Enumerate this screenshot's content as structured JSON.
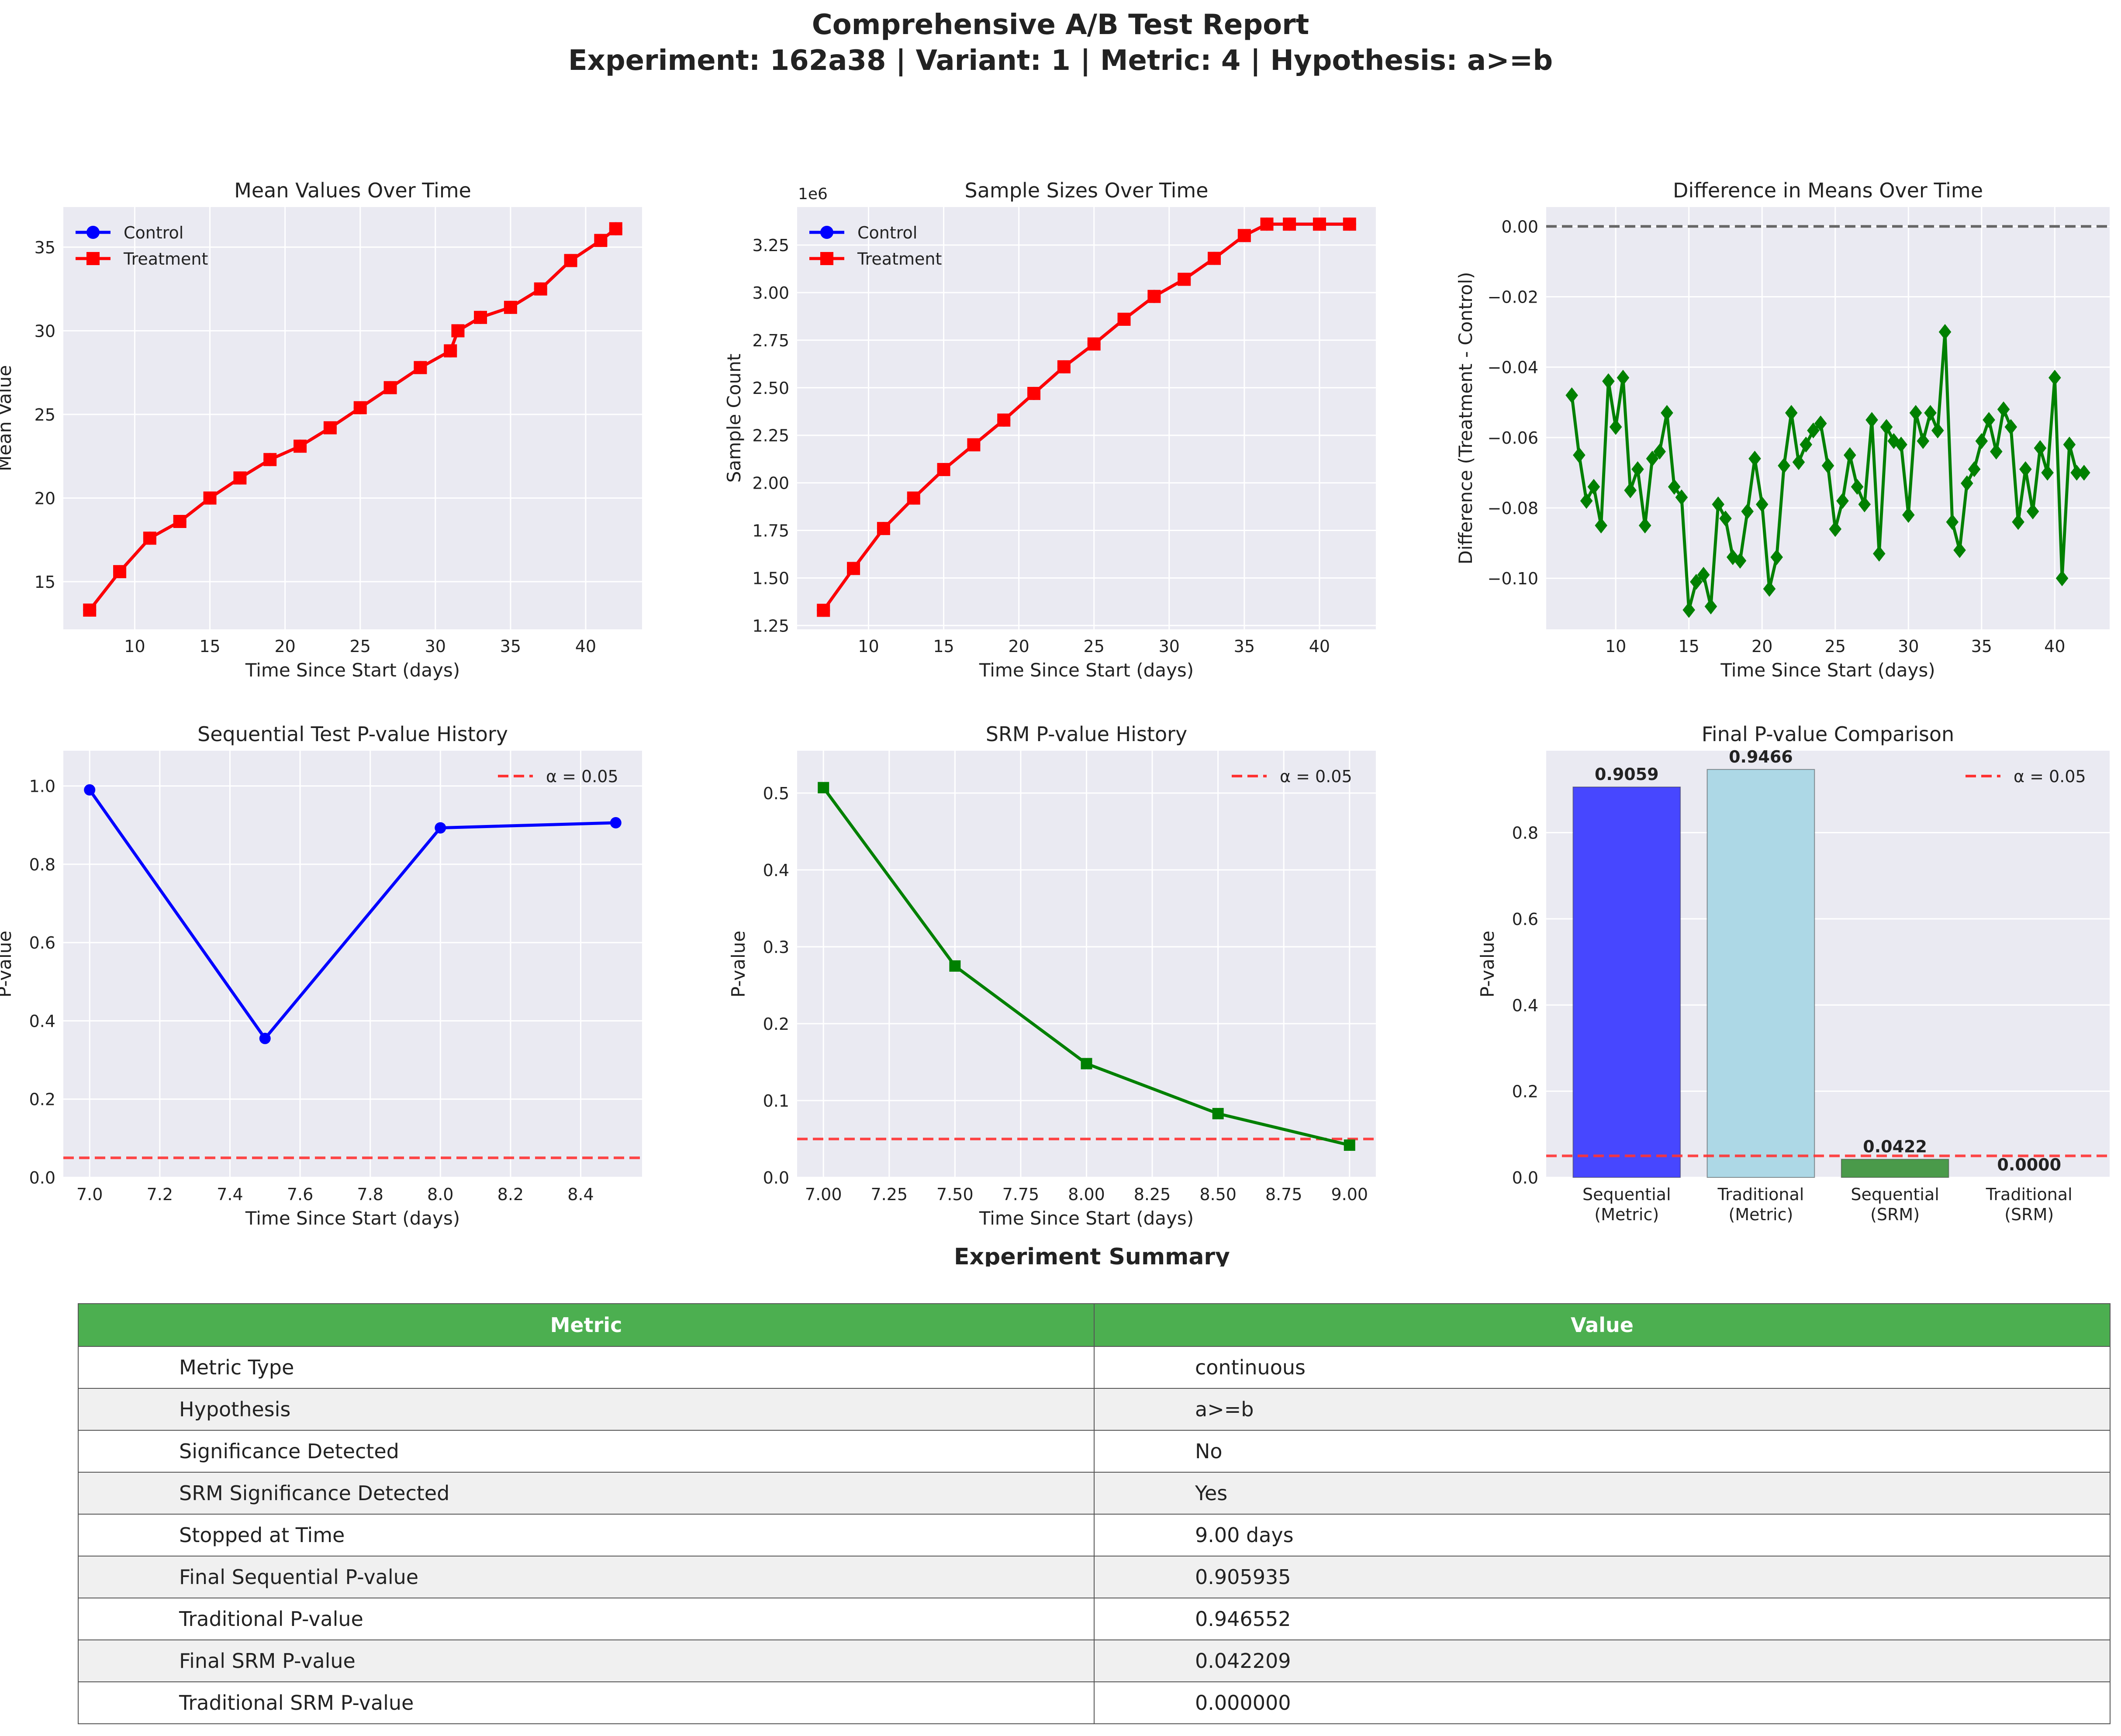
{
  "figure": {
    "title_line1": "Comprehensive A/B Test Report",
    "title_line2": "Experiment: 162a38 | Variant: 1 | Metric: 4 | Hypothesis: a>=b"
  },
  "colors": {
    "axes_bg": "#eaeaf2",
    "grid": "#ffffff",
    "control": "#0000ff",
    "treatment": "#ff0000",
    "diff": "#008000",
    "alpha_line": "#ff3333",
    "zero_line": "#666666"
  },
  "chart_data": [
    {
      "type": "line",
      "title": "Mean Values Over Time",
      "xlabel": "Time Since Start (days)",
      "ylabel": "Mean Value",
      "xlim": [
        5.25,
        43.75
      ],
      "ylim": [
        12.15,
        37.4
      ],
      "xticks": [
        10,
        15,
        20,
        25,
        30,
        35,
        40
      ],
      "yticks": [
        15,
        20,
        25,
        30,
        35
      ],
      "legend": "top-left",
      "series": [
        {
          "name": "Control",
          "color": "#0000ff",
          "marker": "circle",
          "x": [
            7,
            9,
            11,
            13,
            15,
            17,
            19,
            21,
            23,
            25,
            27,
            29,
            31,
            31.5,
            33,
            35,
            37,
            39,
            41,
            42
          ],
          "y": [
            13.3,
            15.6,
            17.6,
            18.6,
            20.0,
            21.2,
            22.3,
            23.1,
            24.2,
            25.4,
            26.6,
            27.8,
            28.8,
            30.0,
            30.8,
            31.4,
            32.5,
            34.2,
            35.4,
            36.1
          ]
        },
        {
          "name": "Treatment",
          "color": "#ff0000",
          "marker": "square",
          "x": [
            7,
            9,
            11,
            13,
            15,
            17,
            19,
            21,
            23,
            25,
            27,
            29,
            31,
            31.5,
            33,
            35,
            37,
            39,
            41,
            42
          ],
          "y": [
            13.3,
            15.6,
            17.6,
            18.6,
            20.0,
            21.2,
            22.3,
            23.1,
            24.2,
            25.4,
            26.6,
            27.8,
            28.8,
            30.0,
            30.8,
            31.4,
            32.5,
            34.2,
            35.4,
            36.1
          ]
        }
      ]
    },
    {
      "type": "line",
      "title": "Sample Sizes Over Time",
      "xlabel": "Time Since Start (days)",
      "ylabel": "Sample Count",
      "offset_label": "1e6",
      "xlim": [
        5.25,
        43.75
      ],
      "ylim": [
        1.23,
        3.45
      ],
      "xticks": [
        10,
        15,
        20,
        25,
        30,
        35,
        40
      ],
      "yticks": [
        1.25,
        1.5,
        1.75,
        2.0,
        2.25,
        2.5,
        2.75,
        3.0,
        3.25
      ],
      "ytick_labels": [
        "1.25",
        "1.50",
        "1.75",
        "2.00",
        "2.25",
        "2.50",
        "2.75",
        "3.00",
        "3.25"
      ],
      "legend": "top-left",
      "series": [
        {
          "name": "Control",
          "color": "#0000ff",
          "marker": "circle",
          "x": [
            7,
            9,
            11,
            13,
            15,
            17,
            19,
            21,
            23,
            25,
            27,
            29,
            31,
            33,
            35,
            36.5,
            38,
            40,
            42
          ],
          "y": [
            1.33,
            1.55,
            1.76,
            1.92,
            2.07,
            2.2,
            2.33,
            2.47,
            2.61,
            2.73,
            2.86,
            2.98,
            3.07,
            3.18,
            3.3,
            3.36,
            3.36,
            3.36,
            3.36
          ]
        },
        {
          "name": "Treatment",
          "color": "#ff0000",
          "marker": "square",
          "x": [
            7,
            9,
            11,
            13,
            15,
            17,
            19,
            21,
            23,
            25,
            27,
            29,
            31,
            33,
            35,
            36.5,
            38,
            40,
            42
          ],
          "y": [
            1.33,
            1.55,
            1.76,
            1.92,
            2.07,
            2.2,
            2.33,
            2.47,
            2.61,
            2.73,
            2.86,
            2.98,
            3.07,
            3.18,
            3.3,
            3.36,
            3.36,
            3.36,
            3.36
          ]
        }
      ]
    },
    {
      "type": "line",
      "title": "Difference in Means Over Time",
      "xlabel": "Time Since Start (days)",
      "ylabel": "Difference (Treatment - Control)",
      "xlim": [
        5.25,
        43.75
      ],
      "ylim": [
        -0.1145,
        0.0055
      ],
      "xticks": [
        10,
        15,
        20,
        25,
        30,
        35,
        40
      ],
      "yticks": [
        0,
        -0.02,
        -0.04,
        -0.06,
        -0.08,
        -0.1
      ],
      "ytick_labels": [
        "0.00",
        "−0.02",
        "−0.04",
        "−0.06",
        "−0.08",
        "−0.10"
      ],
      "reference_line": 0,
      "series": [
        {
          "name": "",
          "color": "#008000",
          "marker": "diamond",
          "x": [
            7,
            7.5,
            8,
            8.5,
            9,
            9.5,
            10,
            10.5,
            11,
            11.5,
            12,
            12.5,
            13,
            13.5,
            14,
            14.5,
            15,
            15.5,
            16,
            16.5,
            17,
            17.5,
            18,
            18.5,
            19,
            19.5,
            20,
            20.5,
            21,
            21.5,
            22,
            22.5,
            23,
            23.5,
            24,
            24.5,
            25,
            25.5,
            26,
            26.5,
            27,
            27.5,
            28,
            28.5,
            29,
            29.5,
            30,
            30.5,
            31,
            31.5,
            32,
            32.5,
            33,
            33.5,
            34,
            34.5,
            35,
            35.5,
            36,
            36.5,
            37,
            37.5,
            38,
            38.5,
            39,
            39.5,
            40,
            40.5,
            41,
            41.5,
            42
          ],
          "y": [
            -0.048,
            -0.065,
            -0.078,
            -0.074,
            -0.085,
            -0.044,
            -0.057,
            -0.043,
            -0.075,
            -0.069,
            -0.085,
            -0.066,
            -0.064,
            -0.053,
            -0.074,
            -0.077,
            -0.109,
            -0.101,
            -0.099,
            -0.108,
            -0.079,
            -0.083,
            -0.094,
            -0.095,
            -0.081,
            -0.066,
            -0.079,
            -0.103,
            -0.094,
            -0.068,
            -0.053,
            -0.067,
            -0.062,
            -0.058,
            -0.056,
            -0.068,
            -0.086,
            -0.078,
            -0.065,
            -0.074,
            -0.079,
            -0.055,
            -0.093,
            -0.057,
            -0.061,
            -0.062,
            -0.082,
            -0.053,
            -0.061,
            -0.053,
            -0.058,
            -0.03,
            -0.084,
            -0.092,
            -0.073,
            -0.069,
            -0.061,
            -0.055,
            -0.064,
            -0.052,
            -0.057,
            -0.084,
            -0.069,
            -0.081,
            -0.063,
            -0.07,
            -0.043,
            -0.1,
            -0.062,
            -0.07,
            -0.07
          ]
        }
      ]
    },
    {
      "type": "line",
      "title": "Sequential Test P-value History",
      "xlabel": "Time Since Start (days)",
      "ylabel": "P-value",
      "xlim": [
        6.925,
        8.575
      ],
      "ylim": [
        0,
        1.09
      ],
      "xticks": [
        7.0,
        7.2,
        7.4,
        7.6,
        7.8,
        8.0,
        8.2,
        8.4
      ],
      "xtick_labels": [
        "7.0",
        "7.2",
        "7.4",
        "7.6",
        "7.8",
        "8.0",
        "8.2",
        "8.4"
      ],
      "yticks": [
        0,
        0.2,
        0.4,
        0.6,
        0.8,
        1.0
      ],
      "ytick_labels": [
        "0.0",
        "0.2",
        "0.4",
        "0.6",
        "0.8",
        "1.0"
      ],
      "alpha_line": 0.05,
      "legend": "top-right",
      "legend_label": "α = 0.05",
      "series": [
        {
          "name": "",
          "color": "#0000ff",
          "marker": "circle",
          "x": [
            7.0,
            7.5,
            8.0,
            8.5
          ],
          "y": [
            0.99,
            0.355,
            0.893,
            0.906
          ]
        }
      ]
    },
    {
      "type": "line",
      "title": "SRM P-value History",
      "xlabel": "Time Since Start (days)",
      "ylabel": "P-value",
      "xlim": [
        6.9,
        9.1
      ],
      "ylim": [
        0,
        0.555
      ],
      "xticks": [
        7.0,
        7.25,
        7.5,
        7.75,
        8.0,
        8.25,
        8.5,
        8.75,
        9.0
      ],
      "xtick_labels": [
        "7.00",
        "7.25",
        "7.50",
        "7.75",
        "8.00",
        "8.25",
        "8.50",
        "8.75",
        "9.00"
      ],
      "yticks": [
        0,
        0.1,
        0.2,
        0.3,
        0.4,
        0.5
      ],
      "ytick_labels": [
        "0.0",
        "0.1",
        "0.2",
        "0.3",
        "0.4",
        "0.5"
      ],
      "alpha_line": 0.05,
      "legend": "top-right",
      "legend_label": "α = 0.05",
      "series": [
        {
          "name": "",
          "color": "#008000",
          "marker": "square",
          "x": [
            7.0,
            7.5,
            8.0,
            8.5,
            9.0
          ],
          "y": [
            0.507,
            0.275,
            0.148,
            0.083,
            0.042
          ]
        }
      ]
    },
    {
      "type": "bar",
      "title": "Final P-value Comparison",
      "xlabel": "",
      "ylabel": "P-value",
      "ylim": [
        0,
        0.99
      ],
      "yticks": [
        0,
        0.2,
        0.4,
        0.6,
        0.8
      ],
      "ytick_labels": [
        "0.0",
        "0.2",
        "0.4",
        "0.6",
        "0.8"
      ],
      "alpha_line": 0.05,
      "legend": "top-right",
      "legend_label": "α = 0.05",
      "categories": [
        [
          "Sequential",
          "(Metric)"
        ],
        [
          "Traditional",
          "(Metric)"
        ],
        [
          "Sequential",
          "(SRM)"
        ],
        [
          "Traditional",
          "(SRM)"
        ]
      ],
      "values": [
        0.9059,
        0.9466,
        0.0422,
        0.0
      ],
      "value_labels": [
        "0.9059",
        "0.9466",
        "0.0422",
        "0.0000"
      ],
      "bar_colors": [
        "#4747ff",
        "#add8e6",
        "#4a9a4a",
        "#cccccc"
      ]
    }
  ],
  "summary": {
    "title": "Experiment Summary",
    "headers": [
      "Metric",
      "Value"
    ],
    "rows": [
      [
        "Metric Type",
        "continuous"
      ],
      [
        "Hypothesis",
        "a>=b"
      ],
      [
        "Significance Detected",
        "No"
      ],
      [
        "SRM Significance Detected",
        "Yes"
      ],
      [
        "Stopped at Time",
        "9.00 days"
      ],
      [
        "Final Sequential P-value",
        "0.905935"
      ],
      [
        "Traditional P-value",
        "0.946552"
      ],
      [
        "Final SRM P-value",
        "0.042209"
      ],
      [
        "Traditional SRM P-value",
        "0.000000"
      ]
    ]
  }
}
